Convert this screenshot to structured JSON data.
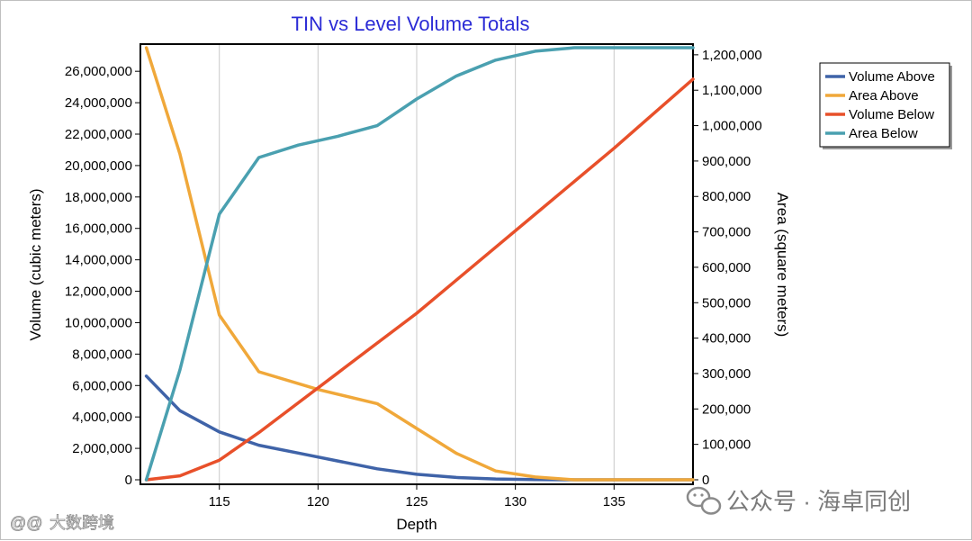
{
  "chart_data": {
    "type": "line",
    "title": "TIN vs Level Volume Totals",
    "xlabel": "Depth",
    "ylabel_left": "Volume (cubic meters)",
    "ylabel_right": "Area (square meters)",
    "xlim": [
      111,
      139
    ],
    "ylim_left": [
      0,
      27500000
    ],
    "ylim_right": [
      0,
      1220000
    ],
    "x_ticks": [
      115,
      120,
      125,
      130,
      135
    ],
    "x_tick_labels": [
      "115",
      "120",
      "125",
      "130",
      "135"
    ],
    "y_left_ticks": [
      0,
      2000000,
      4000000,
      6000000,
      8000000,
      10000000,
      12000000,
      14000000,
      16000000,
      18000000,
      20000000,
      22000000,
      24000000,
      26000000
    ],
    "y_left_tick_labels": [
      "0",
      "2,000,000",
      "4,000,000",
      "6,000,000",
      "8,000,000",
      "10,000,000",
      "12,000,000",
      "14,000,000",
      "16,000,000",
      "18,000,000",
      "20,000,000",
      "22,000,000",
      "24,000,000",
      "26,000,000"
    ],
    "y_right_ticks": [
      0,
      100000,
      200000,
      300000,
      400000,
      500000,
      600000,
      700000,
      800000,
      900000,
      1000000,
      1100000,
      1200000
    ],
    "y_right_tick_labels": [
      "0",
      "100,000",
      "200,000",
      "300,000",
      "400,000",
      "500,000",
      "600,000",
      "700,000",
      "800,000",
      "900,000",
      "1,000,000",
      "1,100,000",
      "1,200,000"
    ],
    "grid": "vertical",
    "legend_position": "top-right",
    "series": [
      {
        "name": "Volume Above",
        "axis": "left",
        "color": "#3f63a8",
        "points": [
          [
            111.3,
            6600000
          ],
          [
            113,
            4400000
          ],
          [
            115,
            3050000
          ],
          [
            117,
            2200000
          ],
          [
            119,
            1700000
          ],
          [
            121,
            1200000
          ],
          [
            123,
            700000
          ],
          [
            125,
            350000
          ],
          [
            127,
            150000
          ],
          [
            129,
            50000
          ],
          [
            131,
            10000
          ],
          [
            133,
            0
          ],
          [
            139,
            0
          ]
        ]
      },
      {
        "name": "Area Above",
        "axis": "right",
        "color": "#f0a83a",
        "points": [
          [
            111.3,
            1220000
          ],
          [
            113,
            920000
          ],
          [
            115,
            465000
          ],
          [
            117,
            305000
          ],
          [
            120,
            255000
          ],
          [
            123,
            215000
          ],
          [
            125,
            145000
          ],
          [
            127,
            75000
          ],
          [
            129,
            25000
          ],
          [
            131,
            8000
          ],
          [
            133,
            0
          ],
          [
            139,
            0
          ]
        ]
      },
      {
        "name": "Volume Below",
        "axis": "left",
        "color": "#e8502a",
        "points": [
          [
            111.3,
            0
          ],
          [
            113,
            250000
          ],
          [
            115,
            1250000
          ],
          [
            117,
            3000000
          ],
          [
            119,
            4900000
          ],
          [
            121,
            6800000
          ],
          [
            123,
            8700000
          ],
          [
            125,
            10600000
          ],
          [
            127,
            12700000
          ],
          [
            129,
            14800000
          ],
          [
            131,
            16900000
          ],
          [
            133,
            19000000
          ],
          [
            135,
            21100000
          ],
          [
            137,
            23300000
          ],
          [
            139,
            25500000
          ]
        ]
      },
      {
        "name": "Area Below",
        "axis": "right",
        "color": "#4aa0b0",
        "points": [
          [
            111.3,
            0
          ],
          [
            113,
            310000
          ],
          [
            115,
            750000
          ],
          [
            117,
            910000
          ],
          [
            119,
            945000
          ],
          [
            121,
            970000
          ],
          [
            123,
            1000000
          ],
          [
            125,
            1075000
          ],
          [
            127,
            1140000
          ],
          [
            129,
            1185000
          ],
          [
            131,
            1210000
          ],
          [
            133,
            1220000
          ],
          [
            139,
            1220000
          ]
        ]
      }
    ]
  },
  "watermark": {
    "left_text": "大数跨境",
    "left_logo": "@@",
    "right_text": "公众号 · 海卓同创",
    "right_icon": "wechat-icon"
  }
}
